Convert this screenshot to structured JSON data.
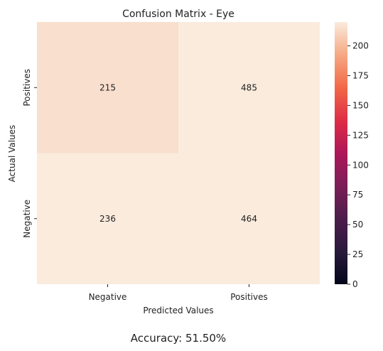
{
  "chart_data": {
    "type": "heatmap",
    "title": "Confusion Matrix - Eye",
    "xlabel": "Predicted Values",
    "ylabel": "Actual Values",
    "x_categories": [
      "Negative",
      "Positives"
    ],
    "y_categories": [
      "Positives",
      "Negative"
    ],
    "values": [
      [
        215,
        485
      ],
      [
        236,
        464
      ]
    ],
    "colorbar": {
      "min": 0,
      "max": 220,
      "ticks": [
        0,
        25,
        50,
        75,
        100,
        125,
        150,
        175,
        200
      ],
      "colormap": "rocket"
    },
    "footer": "Accuracy: 51.50%",
    "grid": false
  }
}
